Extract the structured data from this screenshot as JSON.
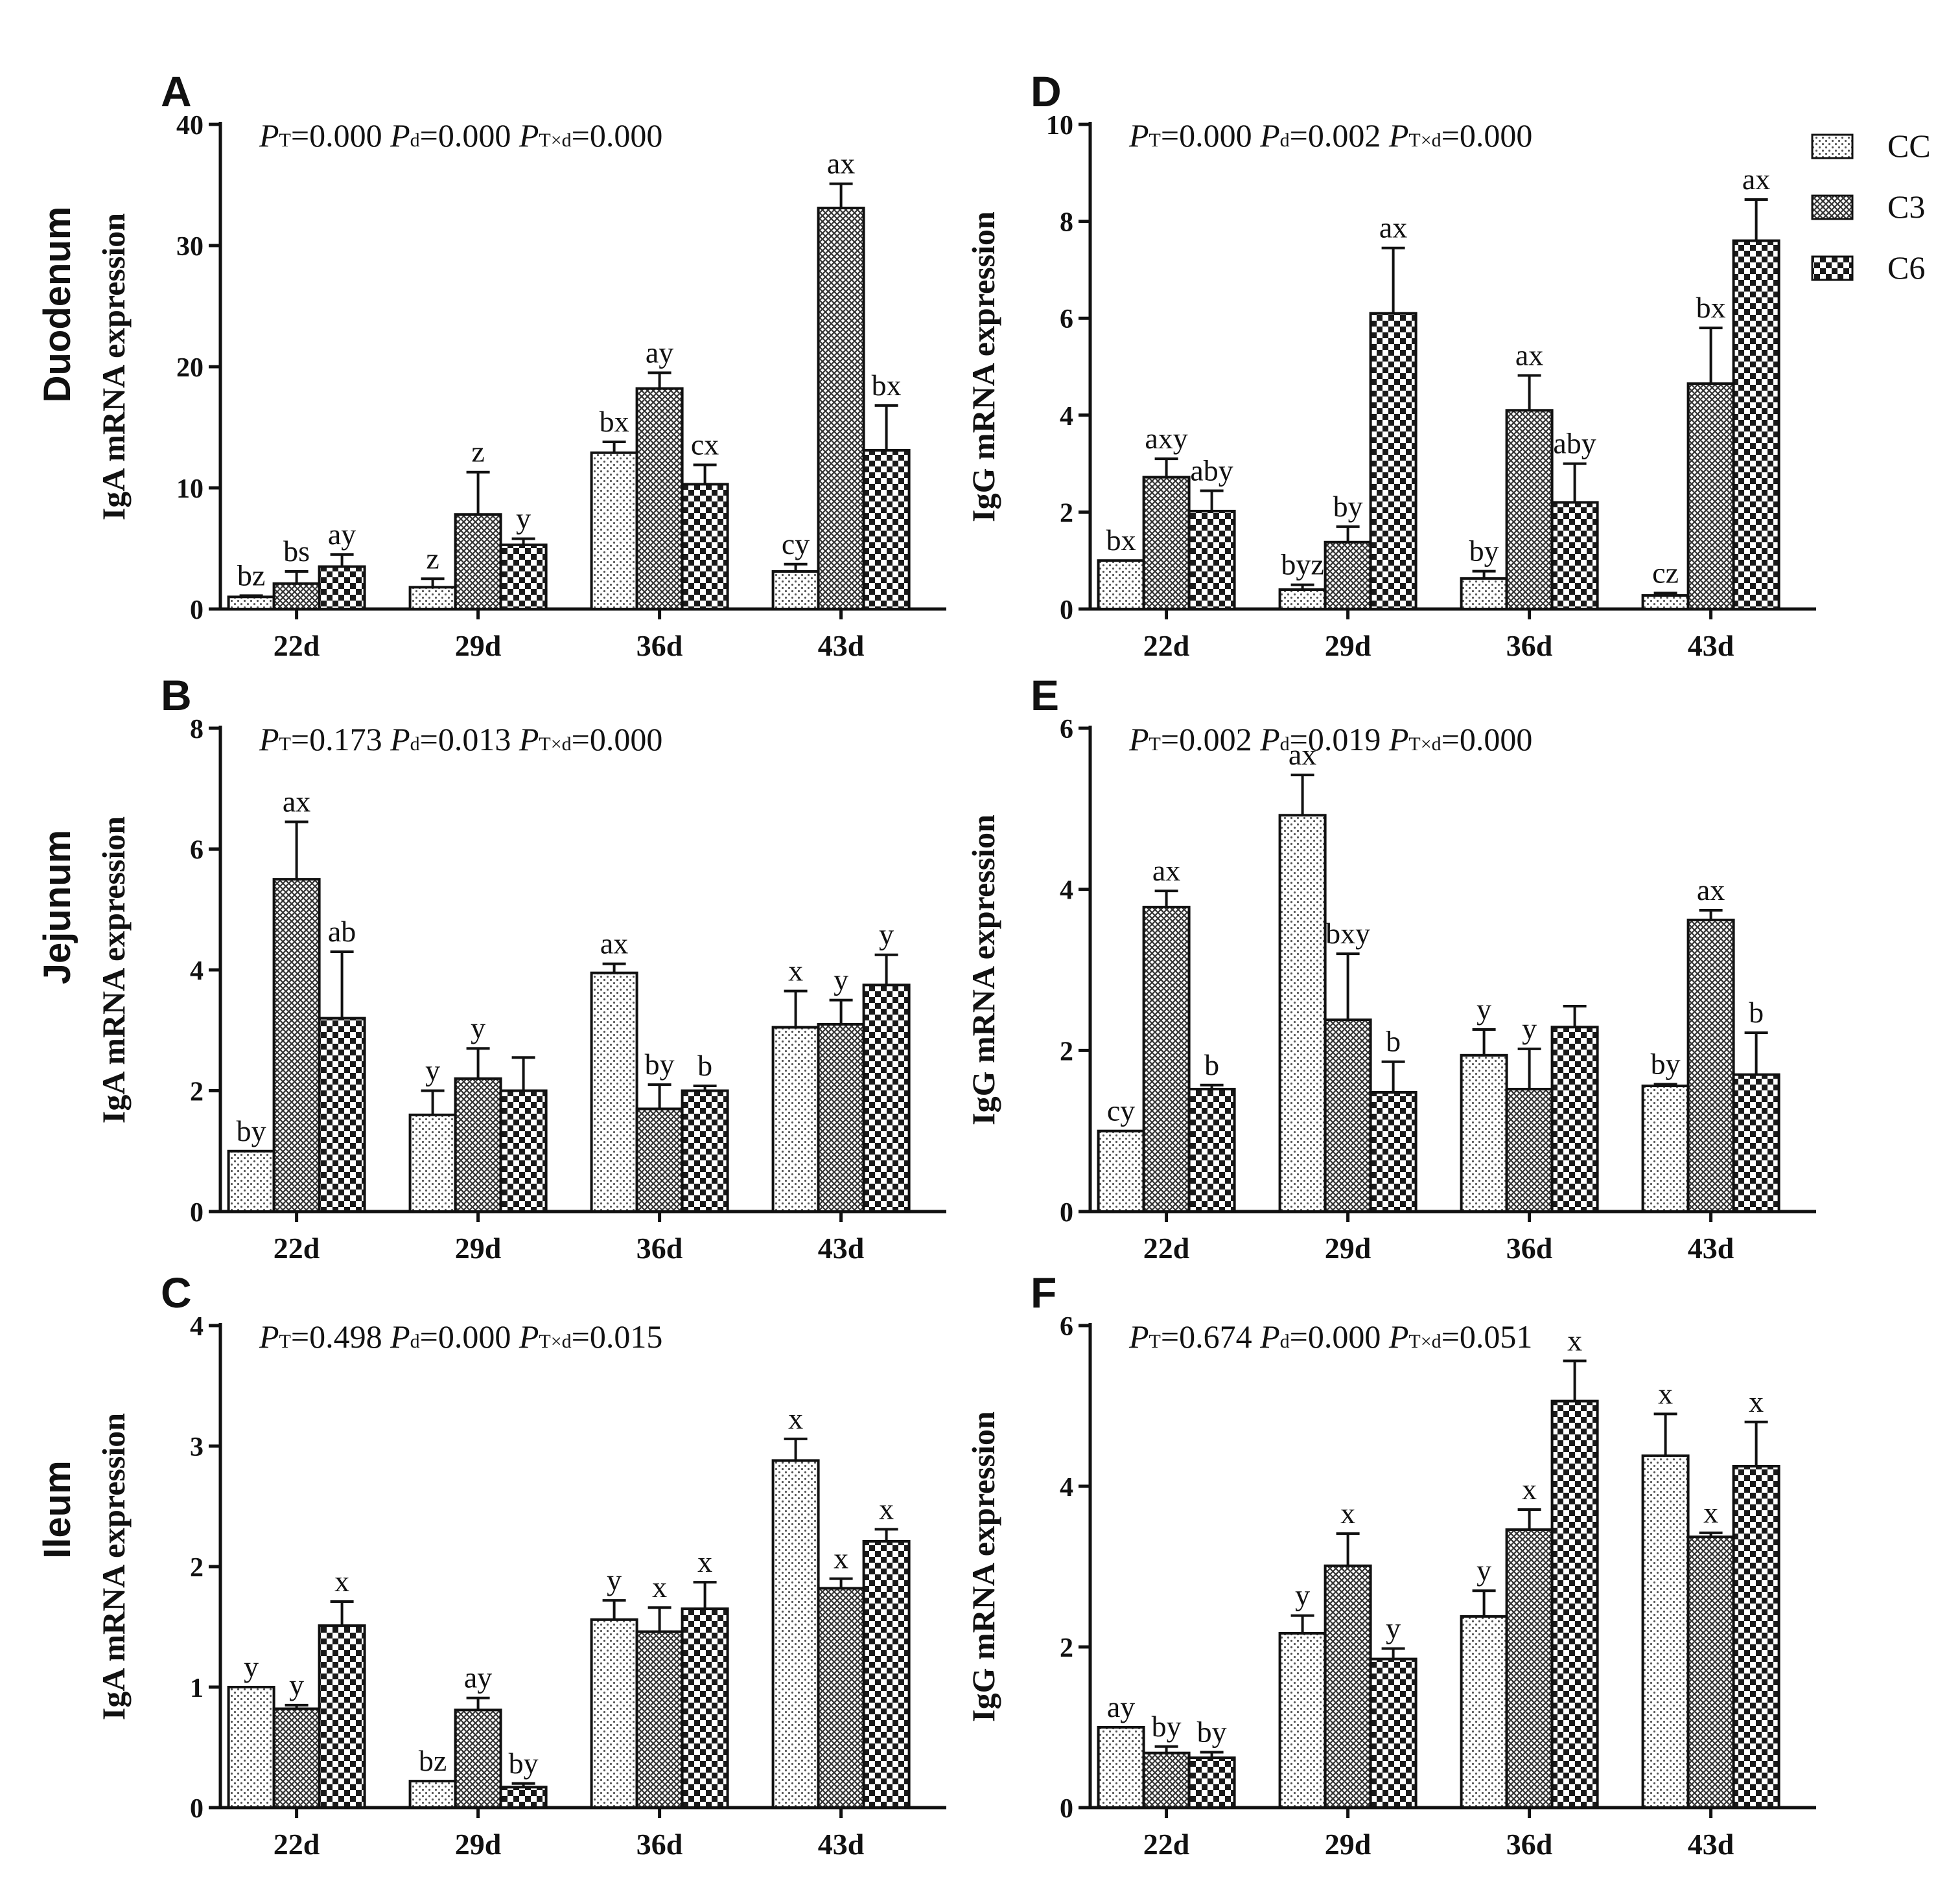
{
  "figure": {
    "row_labels": [
      "Duodenum",
      "Jejunum",
      "Ileum"
    ],
    "legend": [
      {
        "name": "CC",
        "pattern": "dots"
      },
      {
        "name": "C3",
        "pattern": "crosshatch"
      },
      {
        "name": "C6",
        "pattern": "checker"
      }
    ],
    "colors": {
      "bar_fill": "#ffffff",
      "ink": "#111111",
      "dot": "#555555",
      "hatch": "#333333",
      "checker": "#1a1a1a"
    }
  },
  "chart_data": [
    {
      "panel": "A",
      "type": "bar",
      "ylabel": "IgA mRNA expression",
      "ylim": [
        0,
        40
      ],
      "yticks": [
        0,
        10,
        20,
        30,
        40
      ],
      "categories": [
        "22d",
        "29d",
        "36d",
        "43d"
      ],
      "stats": {
        "t": "0.000",
        "d": "0.000",
        "txd": "0.000"
      },
      "series": [
        {
          "name": "CC",
          "values": [
            1.0,
            1.8,
            12.9,
            3.1
          ],
          "errors": [
            0.1,
            0.7,
            0.9,
            0.6
          ],
          "labels": [
            "bz",
            "z",
            "bx",
            "cy"
          ]
        },
        {
          "name": "C3",
          "values": [
            2.1,
            7.8,
            18.2,
            33.1
          ],
          "errors": [
            1.0,
            3.5,
            1.3,
            2.0
          ],
          "labels": [
            "bs",
            "z",
            "ay",
            "ax"
          ]
        },
        {
          "name": "C6",
          "values": [
            3.5,
            5.3,
            10.3,
            13.1
          ],
          "errors": [
            1.0,
            0.5,
            1.6,
            3.7
          ],
          "labels": [
            "ay",
            "y",
            "cx",
            "bx"
          ]
        }
      ]
    },
    {
      "panel": "B",
      "type": "bar",
      "ylabel": "IgA mRNA expression",
      "ylim": [
        0,
        8
      ],
      "yticks": [
        0,
        2,
        4,
        6,
        8
      ],
      "categories": [
        "22d",
        "29d",
        "36d",
        "43d"
      ],
      "stats": {
        "t": "0.173",
        "d": "0.013",
        "txd": "0.000"
      },
      "series": [
        {
          "name": "CC",
          "values": [
            1.0,
            1.6,
            3.95,
            3.05
          ],
          "errors": [
            0.0,
            0.4,
            0.15,
            0.6
          ],
          "labels": [
            "by",
            "y",
            "ax",
            "x"
          ]
        },
        {
          "name": "C3",
          "values": [
            5.5,
            2.2,
            1.7,
            3.1
          ],
          "errors": [
            0.95,
            0.5,
            0.4,
            0.4
          ],
          "labels": [
            "ax",
            "y",
            "by",
            "y"
          ]
        },
        {
          "name": "C6",
          "values": [
            3.2,
            2.0,
            2.0,
            3.75
          ],
          "errors": [
            1.1,
            0.55,
            0.08,
            0.5
          ],
          "labels": [
            "ab",
            "",
            "b",
            "y"
          ]
        }
      ]
    },
    {
      "panel": "C",
      "type": "bar",
      "ylabel": "IgA mRNA expression",
      "ylim": [
        0,
        4
      ],
      "yticks": [
        0,
        1,
        2,
        3,
        4
      ],
      "categories": [
        "22d",
        "29d",
        "36d",
        "43d"
      ],
      "stats": {
        "t": "0.498",
        "d": "0.000",
        "txd": "0.015"
      },
      "series": [
        {
          "name": "CC",
          "values": [
            1.0,
            0.22,
            1.56,
            2.88
          ],
          "errors": [
            0.0,
            0.0,
            0.16,
            0.18
          ],
          "labels": [
            "y",
            "bz",
            "y",
            "x"
          ]
        },
        {
          "name": "C3",
          "values": [
            0.82,
            0.81,
            1.46,
            1.82
          ],
          "errors": [
            0.03,
            0.1,
            0.2,
            0.08
          ],
          "labels": [
            "y",
            "ay",
            "x",
            "x"
          ]
        },
        {
          "name": "C6",
          "values": [
            1.51,
            0.17,
            1.65,
            2.21
          ],
          "errors": [
            0.2,
            0.03,
            0.22,
            0.1
          ],
          "labels": [
            "x",
            "by",
            "x",
            "x"
          ]
        }
      ]
    },
    {
      "panel": "D",
      "type": "bar",
      "ylabel": "IgG mRNA expression",
      "ylim": [
        0,
        10
      ],
      "yticks": [
        0,
        2,
        4,
        6,
        8,
        10
      ],
      "categories": [
        "22d",
        "29d",
        "36d",
        "43d"
      ],
      "stats": {
        "t": "0.000",
        "d": "0.002",
        "txd": "0.000"
      },
      "series": [
        {
          "name": "CC",
          "values": [
            1.0,
            0.4,
            0.63,
            0.28
          ],
          "errors": [
            0.0,
            0.1,
            0.15,
            0.05
          ],
          "labels": [
            "bx",
            "byz",
            "by",
            "cz"
          ]
        },
        {
          "name": "C3",
          "values": [
            2.72,
            1.38,
            4.1,
            4.65
          ],
          "errors": [
            0.38,
            0.32,
            0.72,
            1.15
          ],
          "labels": [
            "axy",
            "by",
            "ax",
            "bx"
          ]
        },
        {
          "name": "C6",
          "values": [
            2.02,
            6.1,
            2.2,
            7.6
          ],
          "errors": [
            0.42,
            1.35,
            0.8,
            0.85
          ],
          "labels": [
            "aby",
            "ax",
            "aby",
            "ax"
          ]
        }
      ]
    },
    {
      "panel": "E",
      "type": "bar",
      "ylabel": "IgG mRNA expression",
      "ylim": [
        0,
        6
      ],
      "yticks": [
        0,
        2,
        4,
        6
      ],
      "categories": [
        "22d",
        "29d",
        "36d",
        "43d"
      ],
      "stats": {
        "t": "0.002",
        "d": "0.019",
        "txd": "0.000"
      },
      "series": [
        {
          "name": "CC",
          "values": [
            1.0,
            4.92,
            1.94,
            1.56
          ],
          "errors": [
            0.0,
            0.5,
            0.32,
            0.02
          ],
          "labels": [
            "cy",
            "ax",
            "y",
            "by"
          ]
        },
        {
          "name": "C3",
          "values": [
            3.78,
            2.38,
            1.52,
            3.62
          ],
          "errors": [
            0.2,
            0.82,
            0.5,
            0.12
          ],
          "labels": [
            "ax",
            "bxy",
            "y",
            "ax"
          ]
        },
        {
          "name": "C6",
          "values": [
            1.52,
            1.48,
            2.29,
            1.7
          ],
          "errors": [
            0.05,
            0.38,
            0.26,
            0.52
          ],
          "labels": [
            "b",
            "b",
            "",
            "b"
          ]
        }
      ]
    },
    {
      "panel": "F",
      "type": "bar",
      "ylabel": "IgG mRNA expression",
      "ylim": [
        0,
        6
      ],
      "yticks": [
        0,
        2,
        4,
        6
      ],
      "categories": [
        "22d",
        "29d",
        "36d",
        "43d"
      ],
      "stats": {
        "t": "0.674",
        "d": "0.000",
        "txd": "0.051"
      },
      "series": [
        {
          "name": "CC",
          "values": [
            1.0,
            2.17,
            2.38,
            4.38
          ],
          "errors": [
            0.0,
            0.22,
            0.32,
            0.52
          ],
          "labels": [
            "ay",
            "y",
            "y",
            "x"
          ]
        },
        {
          "name": "C3",
          "values": [
            0.68,
            3.01,
            3.46,
            3.37
          ],
          "errors": [
            0.08,
            0.4,
            0.25,
            0.05
          ],
          "labels": [
            "by",
            "x",
            "x",
            "x"
          ]
        },
        {
          "name": "C6",
          "values": [
            0.62,
            1.85,
            5.06,
            4.25
          ],
          "errors": [
            0.07,
            0.13,
            0.5,
            0.55
          ],
          "labels": [
            "by",
            "y",
            "x",
            "x"
          ]
        }
      ]
    }
  ]
}
